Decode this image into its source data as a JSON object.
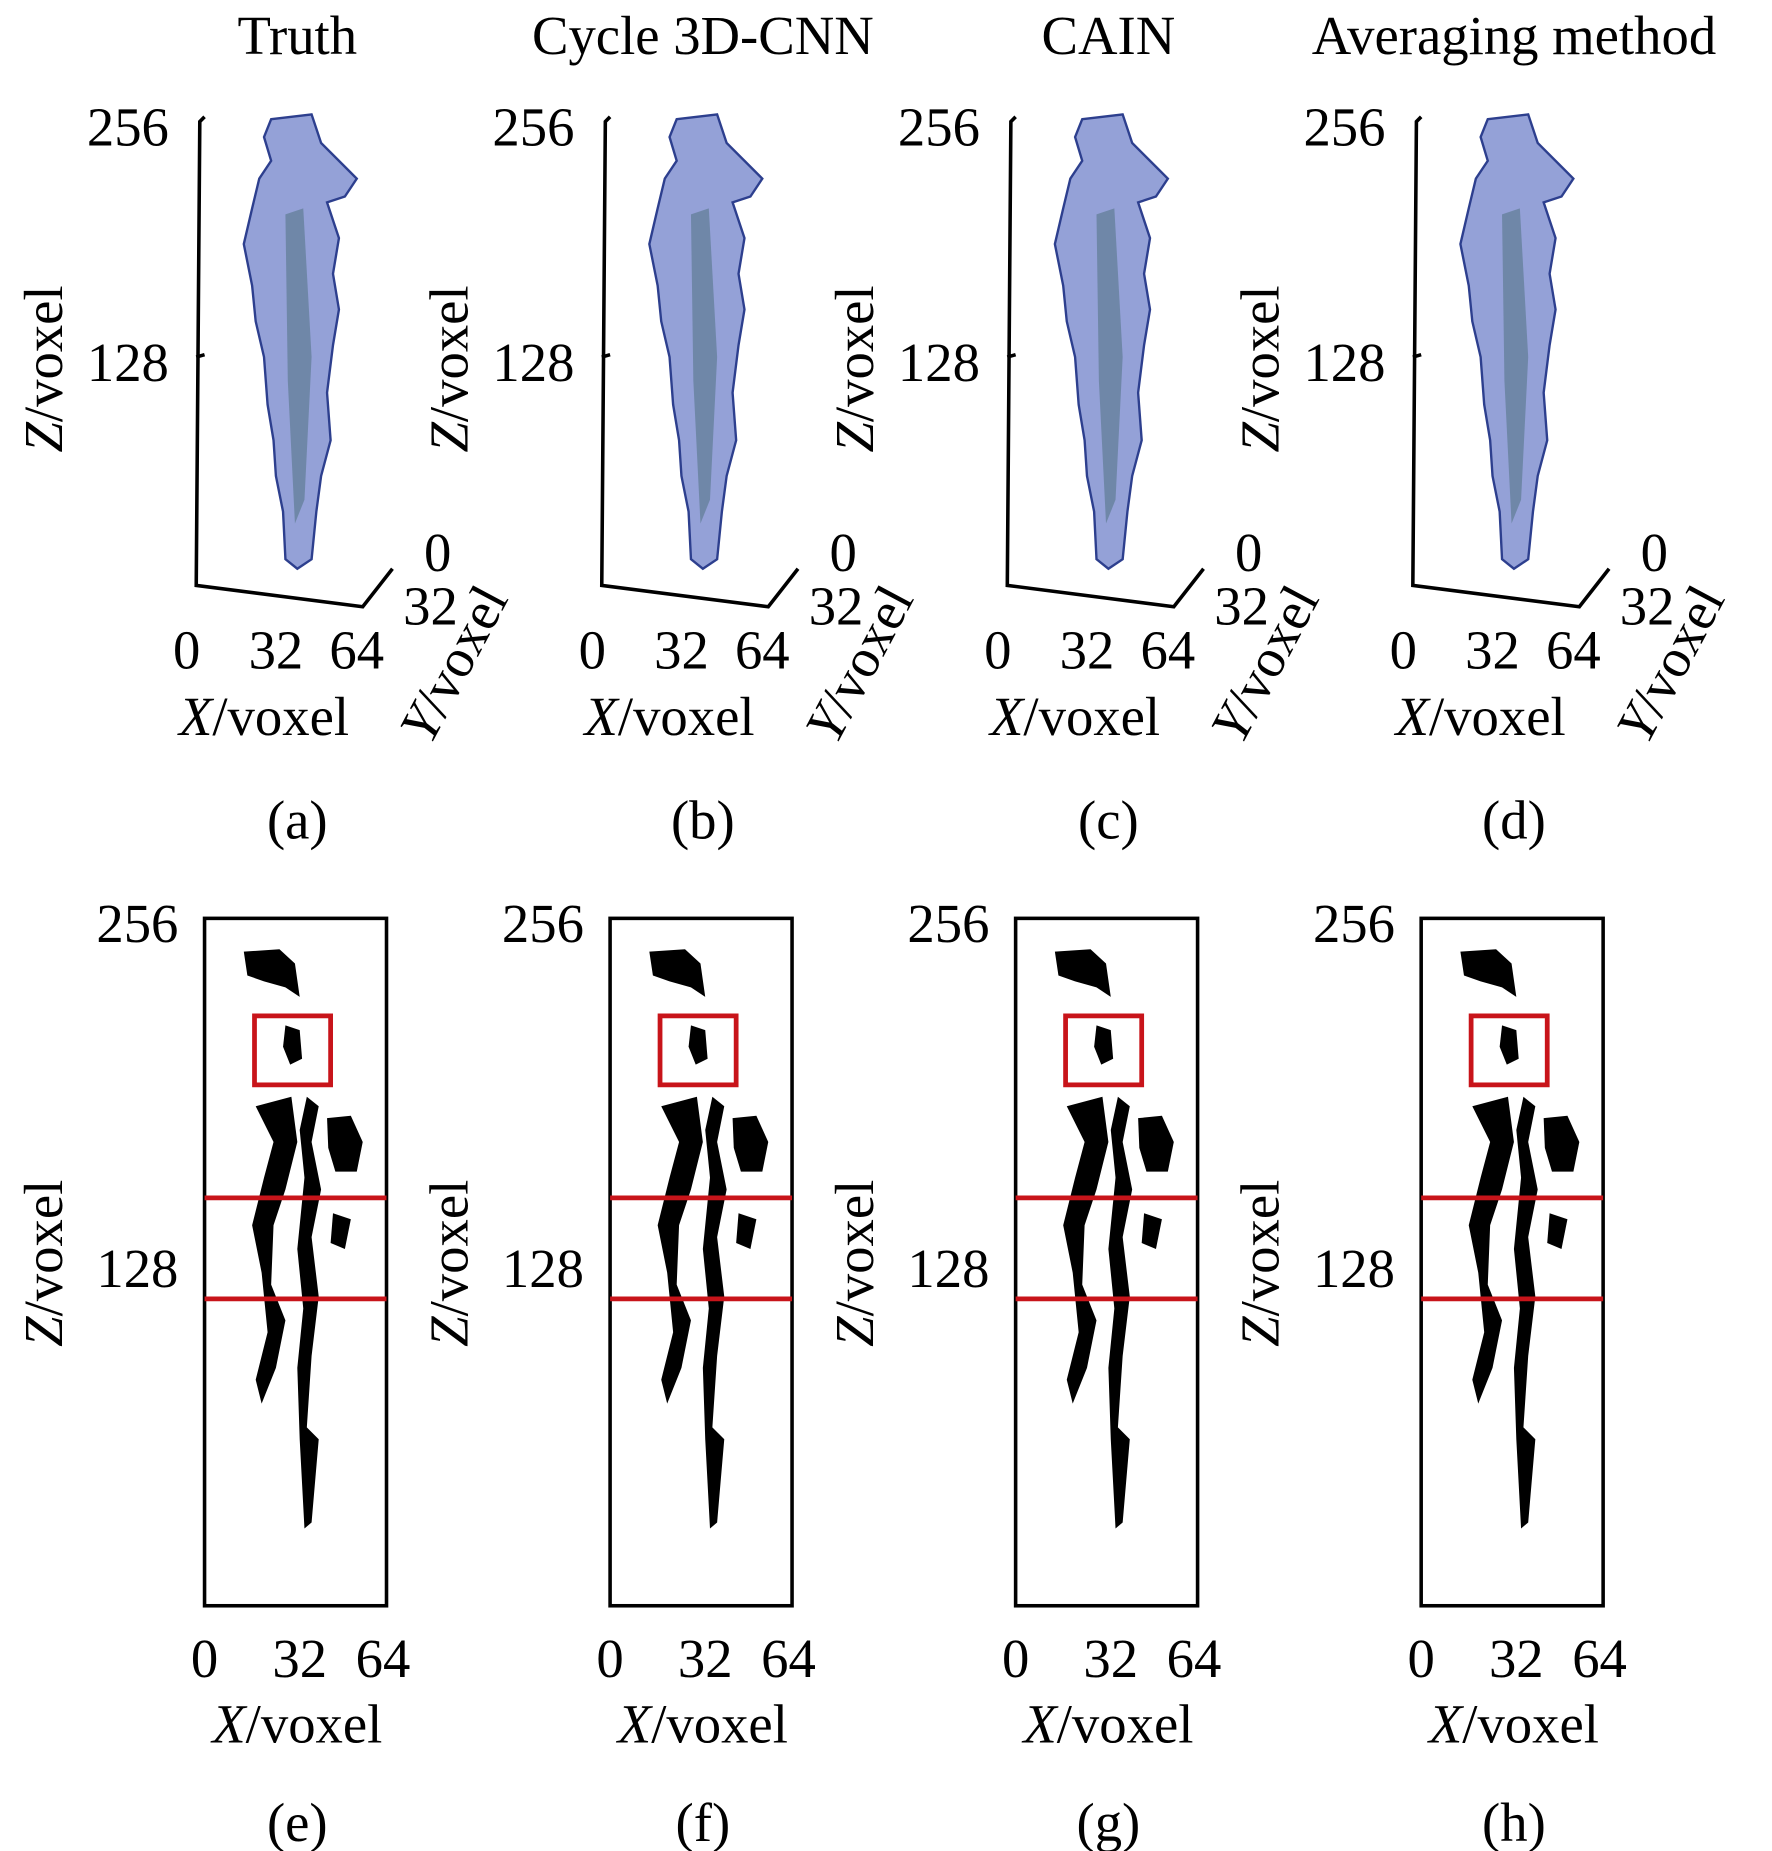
{
  "panels_3d": [
    {
      "title": "Truth",
      "caption": "(a)"
    },
    {
      "title": "Cycle 3D-CNN",
      "caption": "(b)"
    },
    {
      "title": "CAIN",
      "caption": "(c)"
    },
    {
      "title": "Averaging method",
      "caption": "(d)"
    }
  ],
  "panels_2d": [
    {
      "caption": "(e)"
    },
    {
      "caption": "(f)"
    },
    {
      "caption": "(g)"
    },
    {
      "caption": "(h)"
    }
  ],
  "axes": {
    "z_ticks": [
      "256",
      "128"
    ],
    "x_ticks": [
      "0",
      "32",
      "64"
    ],
    "y_ticks": [
      "0",
      "32"
    ],
    "z_label": {
      "var": "Z",
      "unit": "/voxel"
    },
    "x_label": {
      "var": "X",
      "unit": "/voxel"
    },
    "y_label": {
      "var": "Y",
      "unit": "/voxel"
    }
  }
}
